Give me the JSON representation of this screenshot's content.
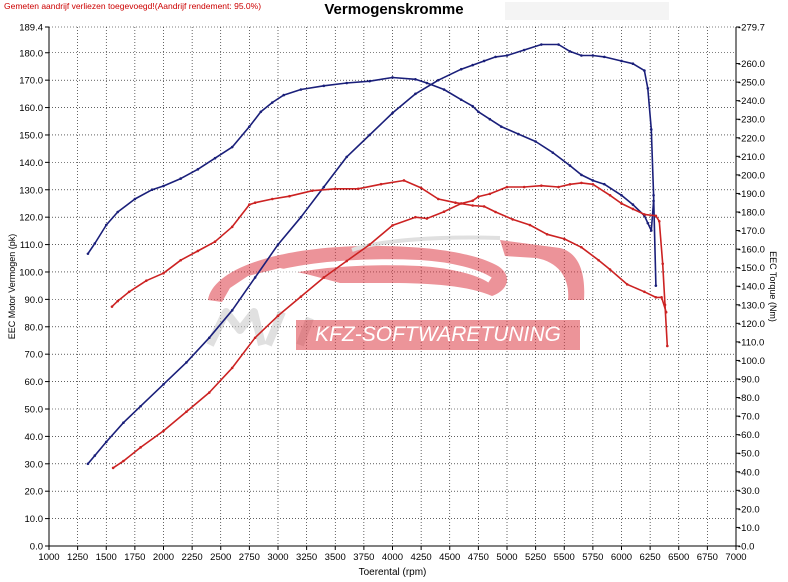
{
  "header": {
    "note": "Gemeten aandrijf verliezen toegevoegd!(Aandrijf rendement: 95.0%)",
    "title": "Vermogenskromme"
  },
  "watermark": {
    "text": "KFZ-SOFTWARETUNING",
    "logo_letters": "MH"
  },
  "colors": {
    "stock": "#cc2222",
    "tuned": "#1a1f7a",
    "grid": "#000000",
    "watermark": "#dd3c46"
  },
  "chart_data": {
    "type": "line",
    "title": "Vermogenskromme",
    "xlabel": "Toerental (rpm)",
    "ylabel": "EEC Motor Vermogen (pk)",
    "y2label": "EEC Torque (Nm)",
    "xlim": [
      1000,
      7000
    ],
    "ylim": [
      0,
      189.4
    ],
    "y2lim": [
      0,
      279.7
    ],
    "grid": true,
    "x_ticks": [
      "1000",
      "1250",
      "1500",
      "1750",
      "2000",
      "2250",
      "2500",
      "2750",
      "3000",
      "3250",
      "3500",
      "3750",
      "4000",
      "4250",
      "4500",
      "4750",
      "5000",
      "5250",
      "5500",
      "5750",
      "6000",
      "6250",
      "6500",
      "6750",
      "7000"
    ],
    "y_ticks": [
      "0.0",
      "10.0",
      "20.0",
      "30.0",
      "40.0",
      "50.0",
      "60.0",
      "70.0",
      "80.0",
      "90.0",
      "100.0",
      "110.0",
      "120.0",
      "130.0",
      "140.0",
      "150.0",
      "160.0",
      "170.0",
      "180.0",
      "189.4"
    ],
    "y2_ticks": [
      "0.0",
      "10.0",
      "20.0",
      "30.0",
      "40.0",
      "50.0",
      "60.0",
      "70.0",
      "80.0",
      "90.0",
      "100.0",
      "110.0",
      "120.0",
      "130.0",
      "140.0",
      "150.0",
      "160.0",
      "170.0",
      "180.0",
      "190.0",
      "200.0",
      "210.0",
      "220.0",
      "230.0",
      "240.0",
      "250.0",
      "260.0",
      "279.7"
    ],
    "series": [
      {
        "axis": "right",
        "color": "#1a1f7a",
        "x": [
          1340,
          1400,
          1500,
          1600,
          1750,
          1900,
          2000,
          2150,
          2300,
          2450,
          2600,
          2750,
          2850,
          2950,
          3050,
          3200,
          3400,
          3600,
          3800,
          4000,
          4200,
          4300,
          4450,
          4600,
          4700,
          4750,
          4850,
          4950,
          5100,
          5250,
          5400,
          5550,
          5650,
          5750,
          5850,
          6000,
          6100,
          6200,
          6230,
          6260,
          6280
        ],
        "y": [
          157.5,
          163,
          173,
          180,
          187,
          192,
          194,
          198,
          203,
          209,
          215,
          226,
          234,
          239,
          243,
          246,
          248,
          249.5,
          250.5,
          252.5,
          251.5,
          249.5,
          246,
          240.5,
          237,
          234,
          230,
          226,
          222,
          218,
          212,
          205,
          200,
          197,
          195,
          189,
          184,
          178,
          174,
          170,
          186
        ]
      },
      {
        "axis": "left",
        "color": "#1a1f7a",
        "x": [
          1340,
          1400,
          1500,
          1650,
          1800,
          2000,
          2200,
          2400,
          2600,
          2800,
          3000,
          3200,
          3400,
          3600,
          3800,
          4000,
          4200,
          4400,
          4600,
          4700,
          4800,
          4900,
          5000,
          5150,
          5300,
          5450,
          5550,
          5650,
          5750,
          5850,
          6000,
          6100,
          6200,
          6230,
          6260,
          6280,
          6300
        ],
        "y": [
          30,
          33,
          38,
          45,
          51,
          59,
          67,
          76,
          86,
          98,
          110,
          120,
          131,
          142,
          150,
          158,
          165,
          170,
          174,
          175.5,
          177,
          178.5,
          179,
          181,
          183,
          183,
          180.5,
          179,
          179,
          178.5,
          177,
          176,
          173.5,
          167,
          152,
          128,
          95
        ]
      },
      {
        "axis": "right",
        "color": "#cc2222",
        "x": [
          1550,
          1600,
          1700,
          1850,
          2000,
          2150,
          2300,
          2450,
          2600,
          2750,
          2800,
          2950,
          3100,
          3300,
          3500,
          3700,
          3900,
          4100,
          4250,
          4400,
          4550,
          4700,
          4800,
          4900,
          5050,
          5200,
          5350,
          5500,
          5650,
          5800,
          5900,
          6050,
          6200,
          6300,
          6350,
          6390
        ],
        "y": [
          129,
          132,
          137,
          143,
          147,
          154,
          159,
          164,
          172,
          184,
          185,
          187,
          188.5,
          191.5,
          192.5,
          192.5,
          195,
          197,
          193,
          187,
          185,
          183.5,
          183,
          180,
          176,
          173,
          168,
          165.5,
          161,
          154,
          149,
          141,
          137,
          134,
          134,
          126
        ]
      },
      {
        "axis": "left",
        "color": "#cc2222",
        "x": [
          1560,
          1650,
          1800,
          2000,
          2200,
          2400,
          2600,
          2800,
          3000,
          3200,
          3400,
          3600,
          3800,
          4000,
          4200,
          4300,
          4450,
          4600,
          4700,
          4750,
          4850,
          5000,
          5150,
          5300,
          5450,
          5550,
          5650,
          5750,
          5900,
          6000,
          6100,
          6200,
          6300,
          6330,
          6360,
          6380,
          6400
        ],
        "y": [
          28.5,
          31,
          36,
          42,
          49,
          56,
          65,
          76,
          84,
          91,
          98,
          104,
          110,
          117,
          120,
          119.5,
          122,
          125,
          126,
          127.5,
          128.5,
          131,
          131,
          131.5,
          131,
          132,
          132.5,
          132,
          128,
          125,
          123,
          121,
          120.5,
          118.5,
          103,
          88,
          73
        ]
      }
    ]
  }
}
